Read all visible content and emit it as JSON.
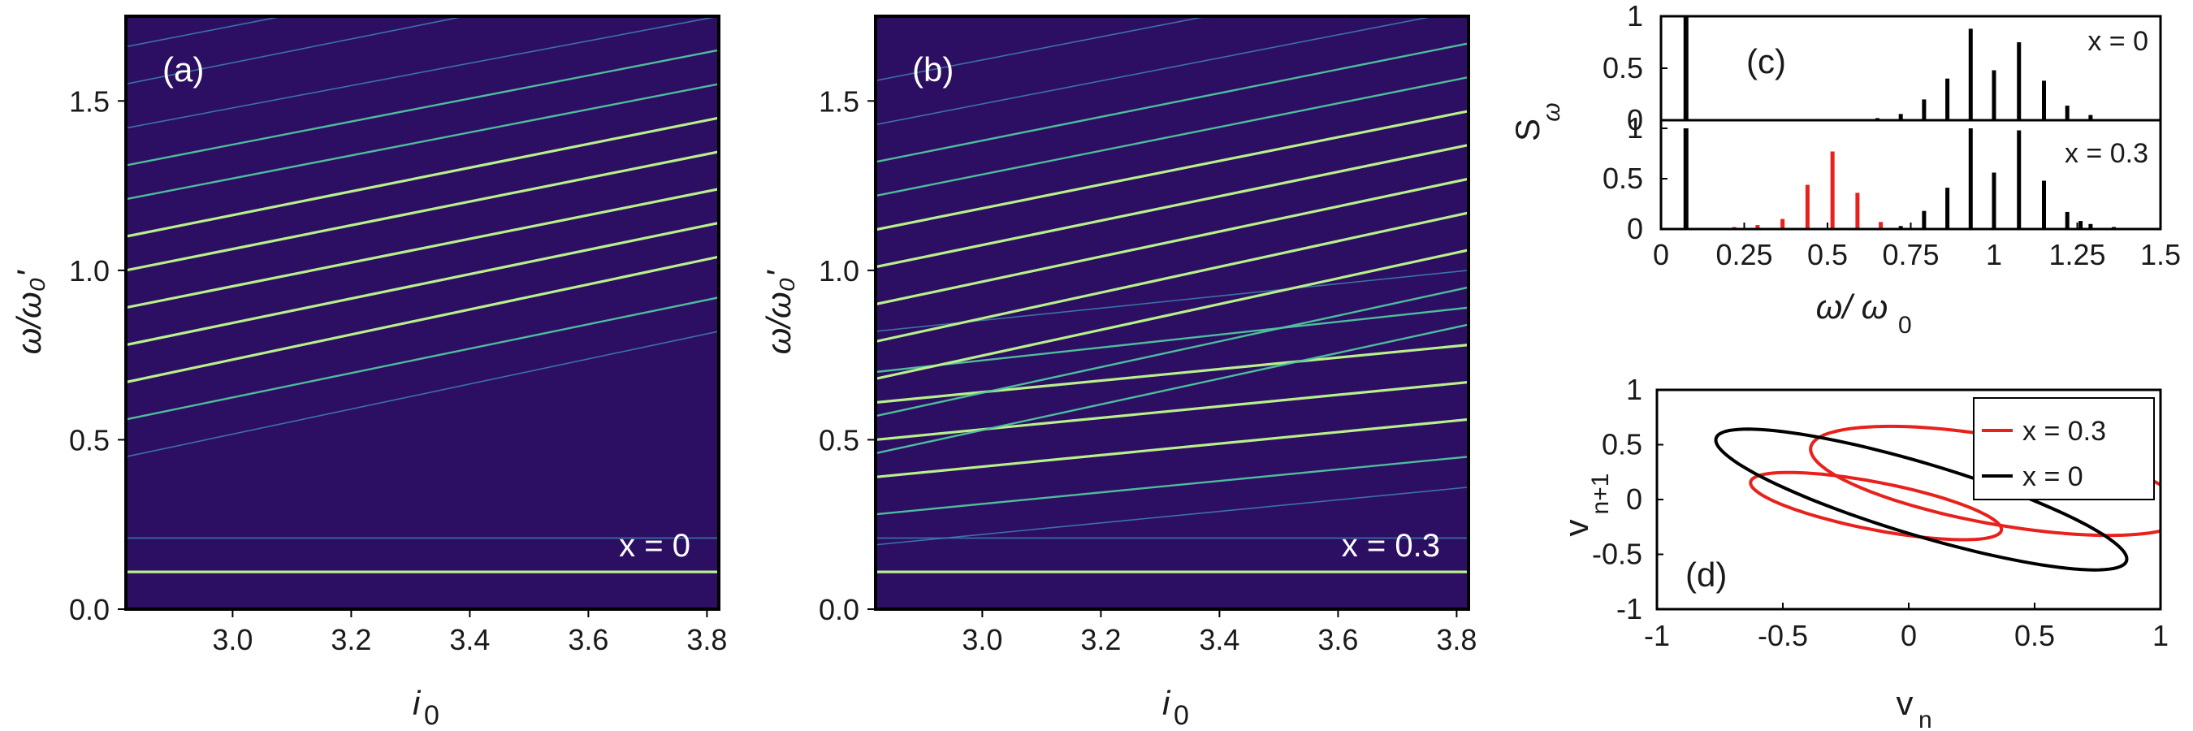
{
  "colors": {
    "heatmap_bg": "#2c0f63",
    "bright_line": "#b8f08a",
    "mid_line": "#4fc6a0",
    "faint_line": "#3d7dab",
    "black": "#000000",
    "red": "#e8211c"
  },
  "chart_data": [
    {
      "id": "a",
      "type": "heatmap",
      "panel_label": "(a)",
      "annotation": "x = 0",
      "xlabel_main": "i",
      "xlabel_sub": "0",
      "ylabel": "ω/ω₀'",
      "xlim": [
        2.82,
        3.82
      ],
      "ylim": [
        0,
        1.75
      ],
      "xticks": [
        "3.0",
        "3.2",
        "3.4",
        "3.6",
        "3.8"
      ],
      "xtick_values": [
        3.0,
        3.2,
        3.4,
        3.6,
        3.8
      ],
      "yticks": [
        "0.0",
        "0.5",
        "1.0",
        "1.5"
      ],
      "ytick_values": [
        0.0,
        0.5,
        1.0,
        1.5
      ],
      "lines": [
        {
          "y_start": 0.11,
          "y_end": 0.11,
          "intensity": "bright"
        },
        {
          "y_start": 0.21,
          "y_end": 0.21,
          "intensity": "faint"
        },
        {
          "y_start": 0.45,
          "y_end": 0.82,
          "intensity": "faint"
        },
        {
          "y_start": 0.56,
          "y_end": 0.92,
          "intensity": "mid"
        },
        {
          "y_start": 0.67,
          "y_end": 1.04,
          "intensity": "bright"
        },
        {
          "y_start": 0.78,
          "y_end": 1.14,
          "intensity": "bright"
        },
        {
          "y_start": 0.89,
          "y_end": 1.24,
          "intensity": "bright"
        },
        {
          "y_start": 1.0,
          "y_end": 1.35,
          "intensity": "bright"
        },
        {
          "y_start": 1.1,
          "y_end": 1.45,
          "intensity": "bright"
        },
        {
          "y_start": 1.21,
          "y_end": 1.55,
          "intensity": "mid"
        },
        {
          "y_start": 1.31,
          "y_end": 1.65,
          "intensity": "mid"
        },
        {
          "y_start": 1.42,
          "y_end": 1.75,
          "intensity": "faint"
        },
        {
          "y_start": 1.55,
          "y_end": 1.9,
          "intensity": "faint"
        },
        {
          "y_start": 1.66,
          "y_end": 2.0,
          "intensity": "faint"
        }
      ]
    },
    {
      "id": "b",
      "type": "heatmap",
      "panel_label": "(b)",
      "annotation": "x = 0.3",
      "xlabel_main": "i",
      "xlabel_sub": "0",
      "ylabel": "ω/ω₀'",
      "xlim": [
        2.82,
        3.82
      ],
      "ylim": [
        0,
        1.75
      ],
      "xticks": [
        "3.0",
        "3.2",
        "3.4",
        "3.6",
        "3.8"
      ],
      "xtick_values": [
        3.0,
        3.2,
        3.4,
        3.6,
        3.8
      ],
      "yticks": [
        "0.0",
        "0.5",
        "1.0",
        "1.5"
      ],
      "ytick_values": [
        0.0,
        0.5,
        1.0,
        1.5
      ],
      "lines": [
        {
          "y_start": 0.11,
          "y_end": 0.11,
          "intensity": "bright"
        },
        {
          "y_start": 0.21,
          "y_end": 0.21,
          "intensity": "faint"
        },
        {
          "y_start": 0.19,
          "y_end": 0.36,
          "intensity": "faint"
        },
        {
          "y_start": 0.28,
          "y_end": 0.45,
          "intensity": "mid"
        },
        {
          "y_start": 0.39,
          "y_end": 0.56,
          "intensity": "bright"
        },
        {
          "y_start": 0.5,
          "y_end": 0.67,
          "intensity": "bright"
        },
        {
          "y_start": 0.61,
          "y_end": 0.78,
          "intensity": "bright"
        },
        {
          "y_start": 0.7,
          "y_end": 0.89,
          "intensity": "mid"
        },
        {
          "y_start": 0.82,
          "y_end": 1.0,
          "intensity": "faint"
        },
        {
          "y_start": 0.46,
          "y_end": 0.84,
          "intensity": "mid"
        },
        {
          "y_start": 0.57,
          "y_end": 0.95,
          "intensity": "mid"
        },
        {
          "y_start": 0.68,
          "y_end": 1.06,
          "intensity": "bright"
        },
        {
          "y_start": 0.79,
          "y_end": 1.17,
          "intensity": "bright"
        },
        {
          "y_start": 0.9,
          "y_end": 1.27,
          "intensity": "bright"
        },
        {
          "y_start": 1.01,
          "y_end": 1.37,
          "intensity": "bright"
        },
        {
          "y_start": 1.12,
          "y_end": 1.47,
          "intensity": "bright"
        },
        {
          "y_start": 1.22,
          "y_end": 1.57,
          "intensity": "mid"
        },
        {
          "y_start": 1.32,
          "y_end": 1.67,
          "intensity": "mid"
        },
        {
          "y_start": 1.43,
          "y_end": 1.77,
          "intensity": "faint"
        },
        {
          "y_start": 1.56,
          "y_end": 1.9,
          "intensity": "faint"
        }
      ]
    },
    {
      "id": "c",
      "type": "bar",
      "panel_label": "(c)",
      "ylabel": "S",
      "ylabel_sub": "ω",
      "xlabel": "ω/ ω",
      "xlabel_sub": "0",
      "xlim": [
        0,
        1.5
      ],
      "xticks": [
        "0",
        "0.25",
        "0.5",
        "0.75",
        "1",
        "1.25",
        "1.5"
      ],
      "xtick_values": [
        0,
        0.25,
        0.5,
        0.75,
        1.0,
        1.25,
        1.5
      ],
      "subplots": [
        {
          "annotation": "x = 0",
          "ylim": [
            0,
            1
          ],
          "yticks": [
            "1",
            "0.5",
            "0"
          ],
          "ytick_values": [
            1,
            0.5,
            0
          ],
          "bars": [
            {
              "x": 0.075,
              "y": 1.2,
              "color": "black"
            },
            {
              "x": 0.65,
              "y": 0.02,
              "color": "black"
            },
            {
              "x": 0.72,
              "y": 0.06,
              "color": "black"
            },
            {
              "x": 0.79,
              "y": 0.2,
              "color": "black"
            },
            {
              "x": 0.86,
              "y": 0.4,
              "color": "black"
            },
            {
              "x": 0.93,
              "y": 0.88,
              "color": "black"
            },
            {
              "x": 1.0,
              "y": 0.48,
              "color": "black"
            },
            {
              "x": 1.075,
              "y": 0.75,
              "color": "black"
            },
            {
              "x": 1.15,
              "y": 0.38,
              "color": "black"
            },
            {
              "x": 1.22,
              "y": 0.14,
              "color": "black"
            },
            {
              "x": 1.29,
              "y": 0.05,
              "color": "black"
            }
          ]
        },
        {
          "annotation": "x = 0.3",
          "ylim": [
            0,
            1
          ],
          "yticks": [
            "1",
            "0.5",
            "0"
          ],
          "ytick_values": [
            1,
            0.5,
            0
          ],
          "bars": [
            {
              "x": 0.075,
              "y": 1.2,
              "color": "black"
            },
            {
              "x": 0.22,
              "y": 0.02,
              "color": "red"
            },
            {
              "x": 0.29,
              "y": 0.04,
              "color": "red"
            },
            {
              "x": 0.365,
              "y": 0.1,
              "color": "red"
            },
            {
              "x": 0.44,
              "y": 0.44,
              "color": "red"
            },
            {
              "x": 0.515,
              "y": 0.77,
              "color": "red"
            },
            {
              "x": 0.59,
              "y": 0.36,
              "color": "red"
            },
            {
              "x": 0.66,
              "y": 0.07,
              "color": "red"
            },
            {
              "x": 0.72,
              "y": 0.03,
              "color": "black"
            },
            {
              "x": 0.79,
              "y": 0.18,
              "color": "black"
            },
            {
              "x": 0.86,
              "y": 0.41,
              "color": "black"
            },
            {
              "x": 0.93,
              "y": 1.1,
              "color": "black"
            },
            {
              "x": 1.0,
              "y": 0.56,
              "color": "black"
            },
            {
              "x": 1.075,
              "y": 0.98,
              "color": "black"
            },
            {
              "x": 1.15,
              "y": 0.48,
              "color": "black"
            },
            {
              "x": 1.22,
              "y": 0.17,
              "color": "black"
            },
            {
              "x": 1.26,
              "y": 0.08,
              "color": "black"
            },
            {
              "x": 1.29,
              "y": 0.05,
              "color": "black"
            },
            {
              "x": 1.36,
              "y": 0.02,
              "color": "black"
            },
            {
              "x": 1.43,
              "y": 0.01,
              "color": "black"
            }
          ]
        }
      ]
    },
    {
      "id": "d",
      "type": "line",
      "panel_label": "(d)",
      "xlabel": "v",
      "xlabel_sub": "n",
      "ylabel": "v",
      "ylabel_sub": "n+1",
      "xlim": [
        -1,
        1
      ],
      "ylim": [
        -1,
        1
      ],
      "xticks": [
        "-1",
        "-0.5",
        "0",
        "0.5",
        "1"
      ],
      "xtick_values": [
        -1,
        -0.5,
        0,
        0.5,
        1
      ],
      "yticks": [
        "1",
        "0.5",
        "0",
        "-0.5",
        "-1"
      ],
      "ytick_values": [
        1,
        0.5,
        0,
        -0.5,
        -1
      ],
      "legend": [
        {
          "label": "x = 0.3",
          "color": "red"
        },
        {
          "label": "x = 0",
          "color": "black"
        }
      ],
      "curves": [
        {
          "series": "x = 0.3",
          "color": "red",
          "cx": 0.36,
          "cy": 0.17,
          "a": 0.82,
          "b": 0.37,
          "theta_deg": -27
        },
        {
          "series": "x = 0.3",
          "color": "red",
          "cx": -0.13,
          "cy": -0.06,
          "a": 0.55,
          "b": 0.2,
          "theta_deg": -27
        },
        {
          "series": "x = 0",
          "color": "black",
          "cx": 0.05,
          "cy": 0.0,
          "a": 1.0,
          "b": 0.28,
          "theta_deg": -37
        }
      ]
    }
  ]
}
